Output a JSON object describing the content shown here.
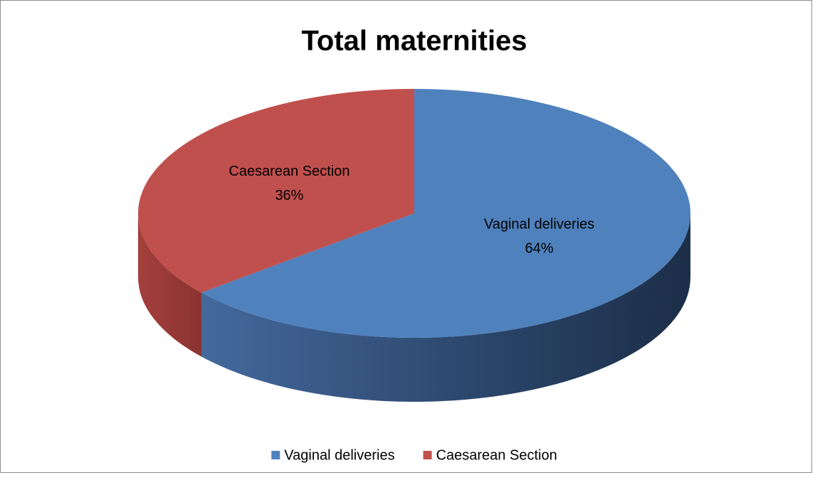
{
  "chart_data": {
    "type": "pie",
    "title": "Total maternities",
    "categories": [
      "Vaginal deliveries",
      "Caesarean Section"
    ],
    "values": [
      64,
      36
    ],
    "value_labels": [
      "64%",
      "36%"
    ],
    "colors": [
      "#4f81bd",
      "#c0504d"
    ],
    "legend": "bottom"
  }
}
